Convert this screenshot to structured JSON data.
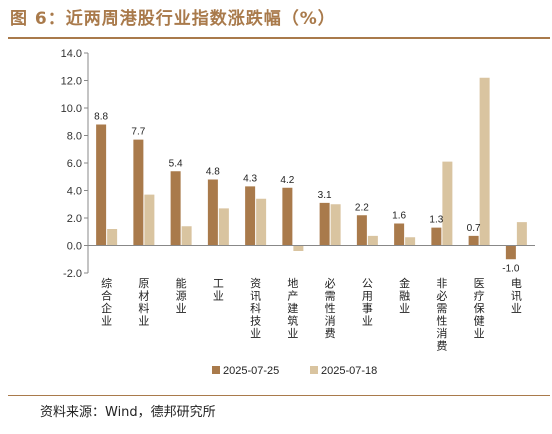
{
  "header": {
    "title": "图 6：近两周港股行业指数涨跌幅（%）"
  },
  "footer": {
    "source": "资料来源：Wind，德邦研究所"
  },
  "colors": {
    "accent": "#a97a4b",
    "series1": "#a97a4b",
    "series2": "#d9c4a0"
  },
  "chart_data": {
    "type": "bar",
    "title": "近两周港股行业指数涨跌幅（%）",
    "categories": [
      "综合企业",
      "原材料业",
      "能源业",
      "工业",
      "资讯科技业",
      "地产建筑业",
      "必需性消费",
      "公用事业",
      "金融业",
      "非必需性消费",
      "医疗保健业",
      "电讯业"
    ],
    "series": [
      {
        "name": "2025-07-25",
        "color": "#a97a4b",
        "values": [
          8.8,
          7.7,
          5.4,
          4.8,
          4.3,
          4.2,
          3.1,
          2.2,
          1.6,
          1.3,
          0.7,
          -1.0
        ],
        "labels": [
          "8.8",
          "7.7",
          "5.4",
          "4.8",
          "4.3",
          "4.2",
          "3.1",
          "2.2",
          "1.6",
          "1.3",
          "0.7",
          "-1.0"
        ]
      },
      {
        "name": "2025-07-18",
        "color": "#d9c4a0",
        "values": [
          1.2,
          3.7,
          1.4,
          2.7,
          3.4,
          -0.4,
          3.0,
          0.7,
          0.6,
          6.1,
          12.2,
          1.7
        ]
      }
    ],
    "yticks": [
      "-2.0",
      "0.0",
      "2.0",
      "4.0",
      "6.0",
      "8.0",
      "10.0",
      "12.0",
      "14.0"
    ],
    "ylim": [
      -2,
      14
    ],
    "grid": false,
    "legend": "bottom-center"
  }
}
